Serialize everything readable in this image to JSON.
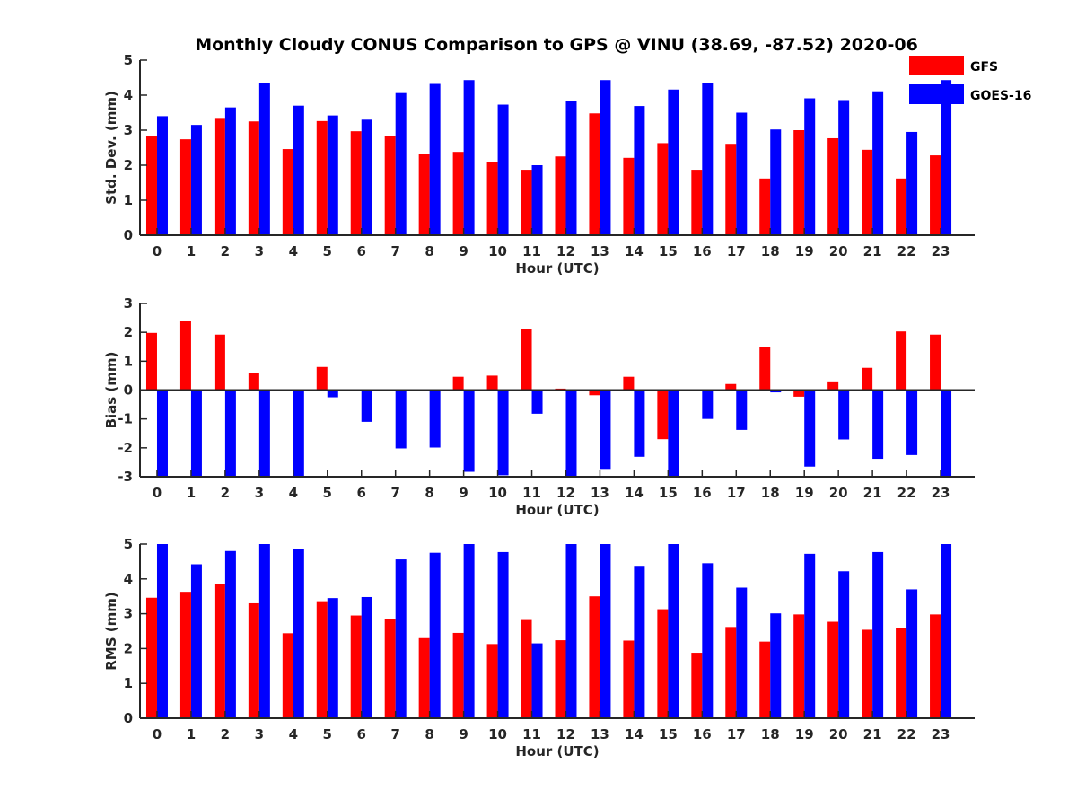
{
  "colors": {
    "gfs": "#ff0000",
    "goes": "#0000ff",
    "axis": "#262626"
  },
  "chart_data": {
    "title": "Monthly Cloudy CONUS Comparison to GPS @ VINU (38.69, -87.52) 2020-06",
    "legend": {
      "position": "top-right",
      "entries": [
        "GFS",
        "GOES-16"
      ]
    },
    "categories": [
      "0",
      "1",
      "2",
      "3",
      "4",
      "5",
      "6",
      "7",
      "8",
      "9",
      "10",
      "11",
      "12",
      "13",
      "14",
      "15",
      "16",
      "17",
      "18",
      "19",
      "20",
      "21",
      "22",
      "23"
    ],
    "panels": [
      {
        "type": "bar",
        "xlabel": "Hour (UTC)",
        "ylabel": "Std. Dev. (mm)",
        "ylim": [
          0,
          5
        ],
        "yticks": [
          "0",
          "1",
          "2",
          "3",
          "4",
          "5"
        ],
        "series": [
          {
            "name": "GFS",
            "values": [
              2.82,
              2.74,
              3.35,
              3.25,
              2.46,
              3.26,
              2.97,
              2.84,
              2.31,
              2.38,
              2.08,
              1.87,
              2.25,
              3.48,
              2.21,
              2.63,
              1.87,
              2.61,
              1.62,
              3.0,
              2.77,
              2.44,
              1.62,
              2.28
            ]
          },
          {
            "name": "GOES-16",
            "values": [
              3.4,
              3.15,
              3.65,
              4.35,
              3.7,
              3.42,
              3.3,
              4.06,
              4.32,
              4.43,
              3.73,
              2.0,
              3.83,
              4.43,
              3.69,
              4.16,
              4.35,
              3.5,
              3.02,
              3.91,
              3.86,
              4.11,
              2.95,
              4.43
            ]
          }
        ]
      },
      {
        "type": "bar",
        "xlabel": "Hour (UTC)",
        "ylabel": "Bias (mm)",
        "ylim": [
          -3,
          3
        ],
        "yticks": [
          "-3",
          "-2",
          "-1",
          "0",
          "1",
          "2",
          "3"
        ],
        "series": [
          {
            "name": "GFS",
            "values": [
              1.98,
              2.4,
              1.92,
              0.58,
              0.02,
              0.8,
              -0.03,
              0.0,
              0.0,
              0.46,
              0.5,
              2.1,
              0.05,
              -0.18,
              0.46,
              -1.7,
              0.03,
              0.21,
              1.5,
              -0.23,
              0.3,
              0.77,
              2.03,
              1.92
            ]
          },
          {
            "name": "GOES-16",
            "values": [
              -3.0,
              -3.0,
              -3.0,
              -3.0,
              -3.0,
              -0.25,
              -1.1,
              -2.02,
              -1.99,
              -2.83,
              -2.95,
              -0.82,
              -3.0,
              -2.73,
              -2.31,
              -3.0,
              -1.0,
              -1.38,
              -0.08,
              -2.65,
              -1.71,
              -2.38,
              -2.25,
              -3.0
            ]
          }
        ]
      },
      {
        "type": "bar",
        "xlabel": "Hour (UTC)",
        "ylabel": "RMS (mm)",
        "ylim": [
          0,
          5
        ],
        "yticks": [
          "0",
          "1",
          "2",
          "3",
          "4",
          "5"
        ],
        "series": [
          {
            "name": "GFS",
            "values": [
              3.46,
              3.63,
              3.86,
              3.3,
              2.44,
              3.36,
              2.95,
              2.86,
              2.3,
              2.45,
              2.13,
              2.82,
              2.24,
              3.5,
              2.23,
              3.13,
              1.88,
              2.62,
              2.2,
              2.98,
              2.77,
              2.54,
              2.6,
              2.98
            ]
          },
          {
            "name": "GOES-16",
            "values": [
              5.0,
              4.42,
              4.8,
              5.0,
              4.86,
              3.45,
              3.48,
              4.56,
              4.75,
              5.0,
              4.77,
              2.15,
              5.0,
              5.0,
              4.35,
              5.0,
              4.45,
              3.75,
              3.01,
              4.72,
              4.22,
              4.77,
              3.7,
              5.0
            ]
          }
        ]
      }
    ]
  }
}
